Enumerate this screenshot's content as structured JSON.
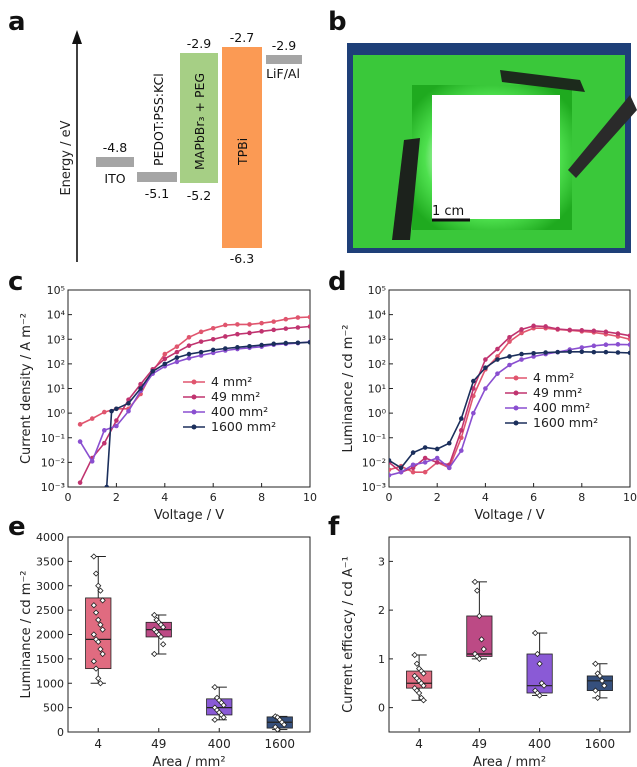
{
  "panel_labels": [
    "a",
    "b",
    "c",
    "d",
    "e",
    "f"
  ],
  "colors": {
    "s4": "#e0556e",
    "s49": "#c0336f",
    "s400": "#8a4fd0",
    "s1600": "#1b2f5c",
    "box4": "#e06b80",
    "box49": "#bc4a85",
    "box400": "#8a5ad6",
    "box1600": "#36507d",
    "pedot": "#a5a5a5",
    "mapbbr": "#a6cf85",
    "tpbi": "#fb9a54",
    "green": "#3ac83a",
    "frame": "#1e3f78"
  },
  "energy_diagram": {
    "yaxis_label": "Energy / eV",
    "levels": [
      {
        "name": "ITO",
        "top_label": "-4.8",
        "value": -4.8
      },
      {
        "name": "PEDOT:PSS:KCl",
        "bottom_label": "-5.1",
        "value": -5.1
      },
      {
        "name": "MAPbBr₃ + PEG",
        "top_label": "-2.9",
        "bottom_label": "-5.2",
        "lumo": -2.9,
        "homo": -5.2
      },
      {
        "name": "TPBi",
        "top_label": "-2.7",
        "bottom_label": "-6.3",
        "lumo": -2.7,
        "homo": -6.3
      },
      {
        "name": "LiF/Al",
        "top_label": "-2.9",
        "value": -2.9
      }
    ]
  },
  "photo": {
    "scale_label": "1 cm"
  },
  "chart_data": [
    {
      "panel": "c",
      "type": "line",
      "xlabel": "Voltage / V",
      "ylabel": "Current density / A m⁻²",
      "xlim": [
        0,
        10
      ],
      "ylim": [
        0.001,
        100000
      ],
      "yscale": "log",
      "xticks": [
        0,
        2,
        4,
        6,
        8,
        10
      ],
      "yticks": [
        "10⁻³",
        "10⁻²",
        "10⁻¹",
        "10⁰",
        "10¹",
        "10²",
        "10³",
        "10⁴",
        "10⁵"
      ],
      "legend_position": "center-right",
      "series": [
        {
          "name": "4 mm²",
          "x": [
            0.5,
            1,
            1.5,
            2,
            2.5,
            3,
            3.5,
            4,
            4.5,
            5,
            5.5,
            6,
            6.5,
            7,
            7.5,
            8,
            8.5,
            9,
            9.5,
            10
          ],
          "y": [
            0.35,
            0.6,
            1.1,
            1.5,
            1.5,
            6,
            50,
            250,
            500,
            1200,
            2000,
            2800,
            3800,
            4000,
            4000,
            4500,
            5200,
            6500,
            7600,
            8000
          ]
        },
        {
          "name": "49 mm²",
          "x": [
            0.5,
            1,
            1.5,
            2,
            2.5,
            3,
            3.5,
            4,
            4.5,
            5,
            5.5,
            6,
            6.5,
            7,
            7.5,
            8,
            8.5,
            9,
            9.5,
            10
          ],
          "y": [
            0.0015,
            0.015,
            0.06,
            0.5,
            3.5,
            15,
            60,
            160,
            300,
            550,
            800,
            1000,
            1300,
            1600,
            1800,
            2100,
            2400,
            2700,
            3000,
            3300
          ]
        },
        {
          "name": "400 mm²",
          "x": [
            0.5,
            1,
            1.5,
            2,
            2.5,
            3,
            3.5,
            4,
            4.5,
            5,
            5.5,
            6,
            6.5,
            7,
            7.5,
            8,
            8.5,
            9,
            9.5,
            10
          ],
          "y": [
            0.07,
            0.011,
            0.2,
            0.3,
            1.2,
            8,
            40,
            80,
            120,
            170,
            220,
            280,
            350,
            400,
            450,
            500,
            600,
            650,
            700,
            780
          ]
        },
        {
          "name": "1600 mm²",
          "x": [
            1.6,
            1.8,
            2,
            2.5,
            3,
            3.5,
            4,
            4.5,
            5,
            5.5,
            6,
            6.5,
            7,
            7.5,
            8,
            8.5,
            9,
            9.5,
            10
          ],
          "y": [
            0.001,
            1.2,
            1.5,
            2.5,
            10,
            50,
            100,
            180,
            250,
            300,
            370,
            420,
            470,
            520,
            580,
            650,
            700,
            720,
            750
          ]
        }
      ]
    },
    {
      "panel": "d",
      "type": "line",
      "xlabel": "Voltage / V",
      "ylabel": "Luminance / cd m⁻²",
      "xlim": [
        0,
        10
      ],
      "ylim": [
        0.001,
        100000
      ],
      "yscale": "log",
      "xticks": [
        0,
        2,
        4,
        6,
        8,
        10
      ],
      "yticks": [
        "10⁻³",
        "10⁻²",
        "10⁻¹",
        "10⁰",
        "10¹",
        "10²",
        "10³",
        "10⁴",
        "10⁵"
      ],
      "legend_position": "center-right",
      "series": [
        {
          "name": "4 mm²",
          "x": [
            0,
            0.5,
            1,
            1.5,
            2,
            2.5,
            3,
            3.5,
            4,
            4.5,
            5,
            5.5,
            6,
            6.5,
            7,
            7.5,
            8,
            8.5,
            9,
            9.5,
            10
          ],
          "y": [
            0.005,
            0.007,
            0.004,
            0.004,
            0.01,
            0.006,
            0.1,
            5,
            60,
            200,
            800,
            1800,
            2800,
            2800,
            2500,
            2300,
            2100,
            1900,
            1600,
            1300,
            1000
          ]
        },
        {
          "name": "49 mm²",
          "x": [
            0,
            0.5,
            1,
            1.5,
            2,
            2.5,
            3,
            3.5,
            4,
            4.5,
            5,
            5.5,
            6,
            6.5,
            7,
            7.5,
            8,
            8.5,
            9,
            9.5,
            10
          ],
          "y": [
            0.01,
            0.004,
            0.006,
            0.015,
            0.01,
            0.008,
            0.2,
            10,
            150,
            400,
            1200,
            2500,
            3500,
            3300,
            2600,
            2400,
            2300,
            2200,
            2000,
            1700,
            1400
          ]
        },
        {
          "name": "400 mm²",
          "x": [
            0,
            0.5,
            1,
            1.5,
            2,
            2.5,
            3,
            3.5,
            4,
            4.5,
            5,
            5.5,
            6,
            6.5,
            7,
            7.5,
            8,
            8.5,
            9,
            9.5,
            10
          ],
          "y": [
            0.003,
            0.004,
            0.008,
            0.01,
            0.015,
            0.006,
            0.03,
            1,
            10,
            40,
            90,
            150,
            200,
            250,
            300,
            380,
            460,
            540,
            600,
            620,
            600
          ]
        },
        {
          "name": "1600 mm²",
          "x": [
            0,
            0.5,
            1,
            1.5,
            2,
            2.5,
            3,
            3.5,
            4,
            4.5,
            5,
            5.5,
            6,
            6.5,
            7,
            7.5,
            8,
            8.5,
            9,
            9.5,
            10
          ],
          "y": [
            0.012,
            0.006,
            0.025,
            0.04,
            0.035,
            0.06,
            0.6,
            20,
            70,
            150,
            200,
            250,
            270,
            290,
            300,
            310,
            310,
            300,
            300,
            290,
            280
          ]
        }
      ]
    },
    {
      "panel": "e",
      "type": "box",
      "xlabel": "Area / mm²",
      "ylabel": "Luminance / cd m⁻²",
      "ylim": [
        0,
        4000
      ],
      "yticks": [
        0,
        500,
        1000,
        1500,
        2000,
        2500,
        3000,
        3500,
        4000
      ],
      "categories": [
        "4",
        "49",
        "400",
        "1600"
      ],
      "boxes": [
        {
          "q1": 1300,
          "median": 1900,
          "q3": 2750,
          "min": 1000,
          "max": 3600,
          "points": [
            3600,
            3250,
            3000,
            2900,
            2700,
            2600,
            2450,
            2300,
            2200,
            2100,
            2000,
            1900,
            1850,
            1700,
            1600,
            1450,
            1300,
            1100,
            1000
          ]
        },
        {
          "q1": 1950,
          "median": 2100,
          "q3": 2250,
          "min": 1600,
          "max": 2400,
          "points": [
            2400,
            2300,
            2250,
            2200,
            2150,
            2100,
            2050,
            2000,
            1950,
            1800,
            1600
          ]
        },
        {
          "q1": 350,
          "median": 500,
          "q3": 680,
          "min": 250,
          "max": 920,
          "points": [
            920,
            700,
            650,
            600,
            550,
            500,
            450,
            400,
            350,
            300,
            250
          ]
        },
        {
          "q1": 80,
          "median": 200,
          "q3": 310,
          "min": 50,
          "max": 320,
          "points": [
            320,
            300,
            250,
            200,
            150,
            100,
            50
          ]
        }
      ]
    },
    {
      "panel": "f",
      "type": "box",
      "xlabel": "Area / mm²",
      "ylabel": "Current efficacy / cd A⁻¹",
      "ylim": [
        -0.5,
        3.5
      ],
      "yticks": [
        0,
        1,
        2,
        3
      ],
      "categories": [
        "4",
        "49",
        "400",
        "1600"
      ],
      "boxes": [
        {
          "q1": 0.4,
          "median": 0.5,
          "q3": 0.75,
          "min": 0.15,
          "max": 1.08,
          "points": [
            1.08,
            0.9,
            0.8,
            0.75,
            0.7,
            0.65,
            0.6,
            0.55,
            0.5,
            0.45,
            0.4,
            0.35,
            0.3,
            0.2,
            0.15
          ]
        },
        {
          "q1": 1.05,
          "median": 1.1,
          "q3": 1.88,
          "min": 1.0,
          "max": 2.58,
          "points": [
            2.58,
            2.4,
            1.88,
            1.4,
            1.2,
            1.1,
            1.05,
            1.0
          ]
        },
        {
          "q1": 0.3,
          "median": 0.45,
          "q3": 1.1,
          "min": 0.25,
          "max": 1.53,
          "points": [
            1.53,
            1.1,
            0.9,
            0.5,
            0.45,
            0.35,
            0.3,
            0.25
          ]
        },
        {
          "q1": 0.35,
          "median": 0.55,
          "q3": 0.65,
          "min": 0.2,
          "max": 0.9,
          "points": [
            0.9,
            0.7,
            0.65,
            0.55,
            0.45,
            0.35,
            0.2
          ]
        }
      ]
    }
  ]
}
